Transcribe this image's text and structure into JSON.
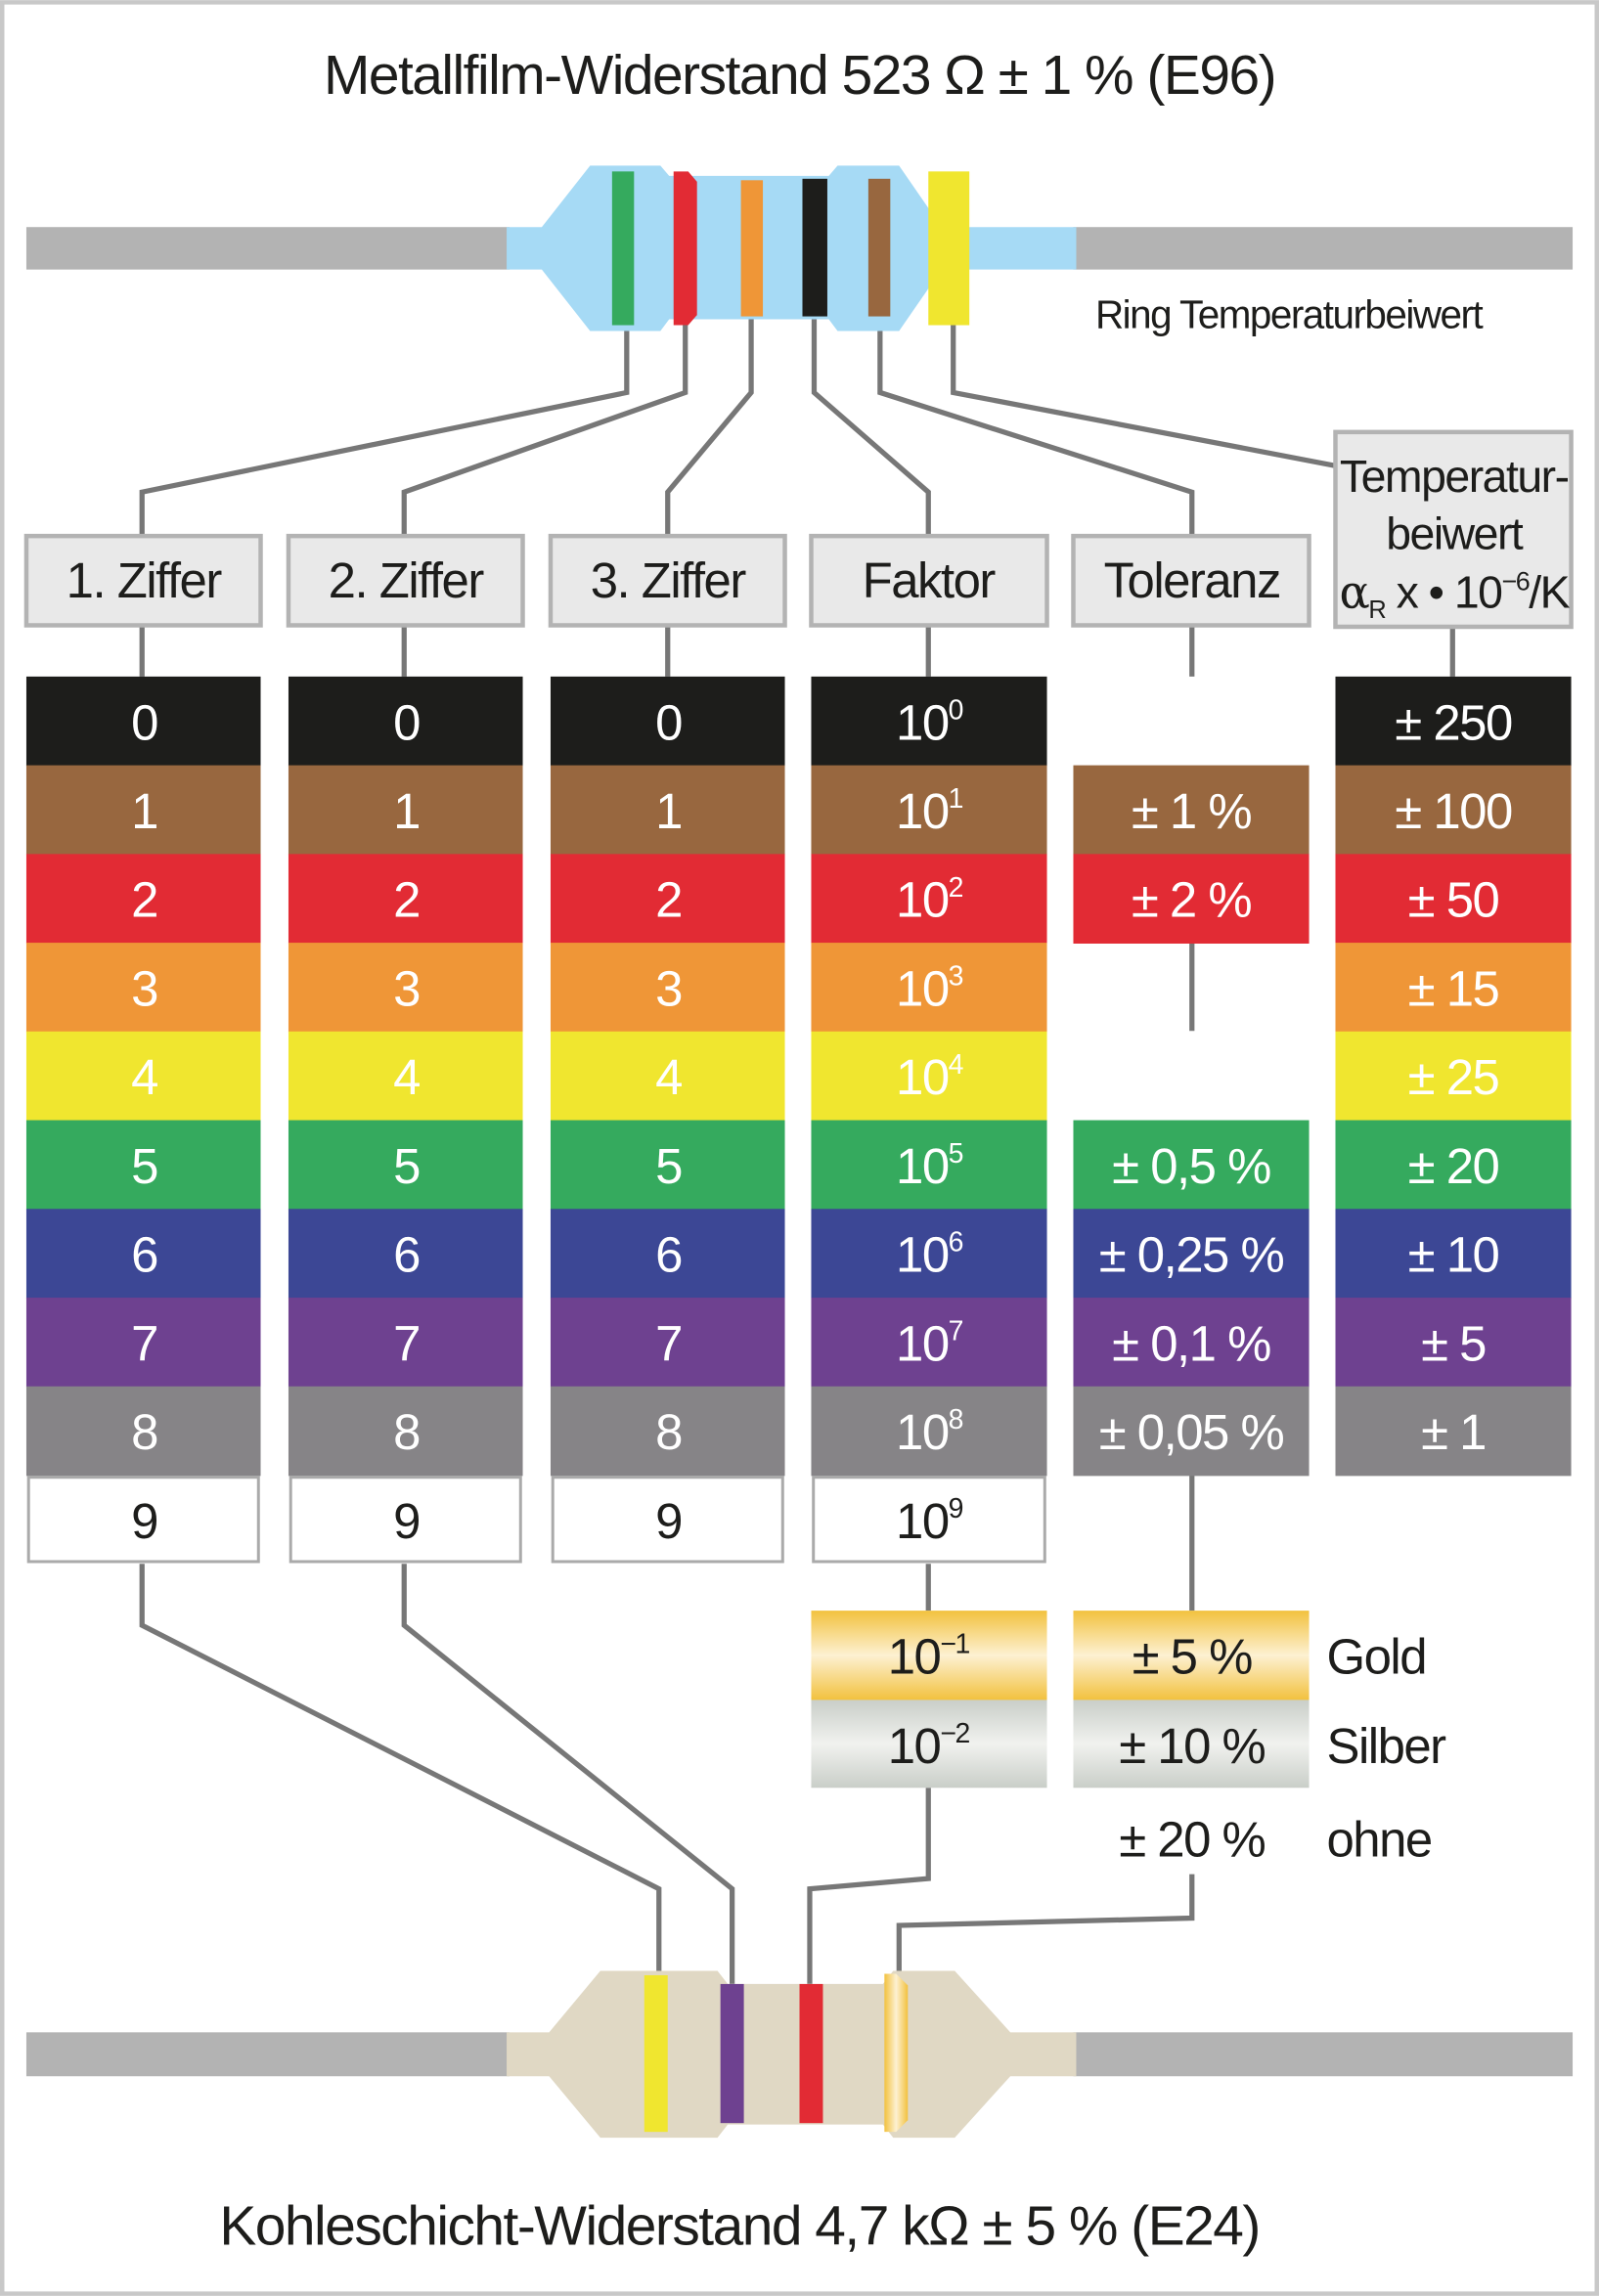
{
  "title": "Metallfilm-Widerstand 523 Ω ± 1 % (E96)",
  "bottom_title": "Kohleschicht-Widerstand 4,7 kΩ ± 5 % (E24)",
  "ring_label": "Ring Temperaturbeiwert",
  "headers": [
    "1. Ziffer",
    "2. Ziffer",
    "3. Ziffer",
    "Faktor",
    "Toleranz"
  ],
  "temp_header": {
    "line1": "Temperatur-",
    "line2": "beiwert",
    "alpha": "α",
    "sub": "R",
    "rest": " x • 10",
    "exp": "−6",
    "unit": "/K"
  },
  "colors": [
    "#1d1d1b",
    "#98673f",
    "#e22b34",
    "#ef9637",
    "#f0e62f",
    "#35aa5e",
    "#3c4795",
    "#6e4190",
    "#868487",
    "#ffffff"
  ],
  "color_names": [
    "black",
    "brown",
    "red",
    "orange",
    "yellow",
    "green",
    "blue",
    "violet",
    "gray",
    "white"
  ],
  "digits": [
    "0",
    "1",
    "2",
    "3",
    "4",
    "5",
    "6",
    "7",
    "8",
    "9"
  ],
  "factor": {
    "base": "10",
    "exps": [
      "0",
      "1",
      "2",
      "3",
      "4",
      "5",
      "6",
      "7",
      "8",
      "9"
    ],
    "gold_exp": "−1",
    "silver_exp": "−2"
  },
  "tolerance": [
    {
      "row": 1,
      "label": "± 1 %"
    },
    {
      "row": 2,
      "label": "± 2 %"
    },
    {
      "row": 5,
      "label": "± 0,5 %"
    },
    {
      "row": 6,
      "label": "± 0,25 %"
    },
    {
      "row": 7,
      "label": "± 0,1 %"
    },
    {
      "row": 8,
      "label": "± 0,05 %"
    }
  ],
  "extra_tol": {
    "gold": "± 5 %",
    "silver": "± 10 %",
    "none": "± 20 %"
  },
  "extra_labels": {
    "gold": "Gold",
    "silver": "Silber",
    "none": "ohne"
  },
  "tempco": [
    "± 250",
    "± 100",
    "± 50",
    "± 15",
    "± 25",
    "± 20",
    "± 10",
    "± 5",
    "± 1"
  ],
  "top_resistor_bands": [
    "green",
    "red",
    "orange",
    "black",
    "brown",
    "yellow"
  ],
  "bottom_resistor_bands": [
    "yellow",
    "violet",
    "red",
    "gold"
  ]
}
